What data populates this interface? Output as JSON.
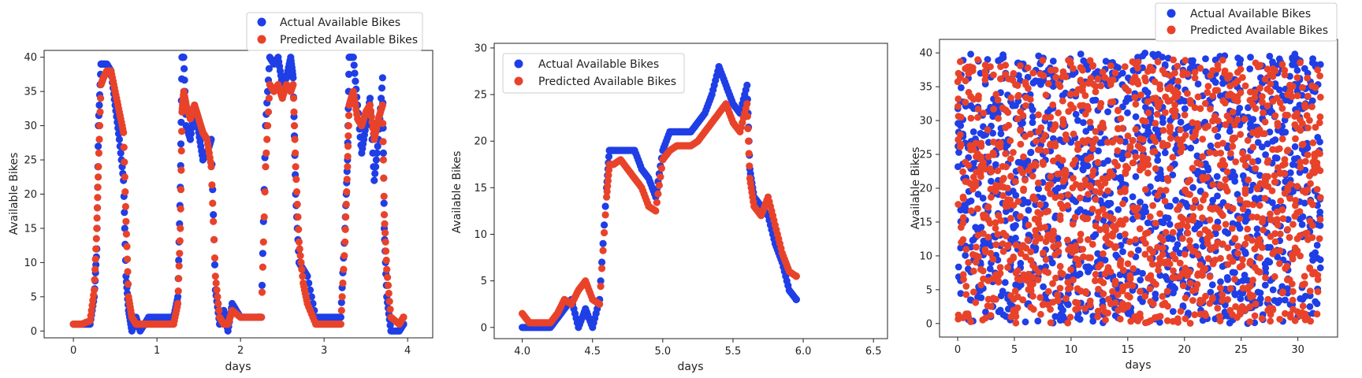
{
  "colors": {
    "actual": "#1f3ee6",
    "predicted": "#e8432a",
    "axis": "#222222",
    "legend_border": "#cccccc"
  },
  "chart_data": [
    {
      "type": "scatter",
      "xlabel": "days",
      "ylabel": "Available Bikes",
      "xlim": [
        -0.35,
        4.3
      ],
      "ylim": [
        -1,
        41
      ],
      "xticks": [
        "0",
        "1",
        "2",
        "3",
        "4"
      ],
      "xtick_values": [
        0,
        1,
        2,
        3,
        4
      ],
      "yticks": [
        "0",
        "5",
        "10",
        "15",
        "20",
        "25",
        "30",
        "35",
        "40"
      ],
      "ytick_values": [
        0,
        5,
        10,
        15,
        20,
        25,
        30,
        35,
        40
      ],
      "grid": false,
      "legend": "top-right, outside",
      "series": [
        {
          "name": "Actual Available Bikes",
          "x": [
            0.0,
            0.1,
            0.2,
            0.25,
            0.28,
            0.3,
            0.33,
            0.36,
            0.4,
            0.45,
            0.5,
            0.55,
            0.6,
            0.63,
            0.66,
            0.7,
            0.75,
            0.8,
            0.9,
            1.0,
            1.1,
            1.2,
            1.25,
            1.28,
            1.3,
            1.32,
            1.35,
            1.4,
            1.45,
            1.5,
            1.55,
            1.6,
            1.65,
            1.7,
            1.75,
            1.8,
            1.85,
            1.9,
            2.0,
            2.1,
            2.2,
            2.25,
            2.3,
            2.35,
            2.4,
            2.45,
            2.5,
            2.55,
            2.6,
            2.63,
            2.66,
            2.7,
            2.75,
            2.8,
            2.9,
            3.0,
            3.1,
            3.2,
            3.25,
            3.28,
            3.3,
            3.35,
            3.4,
            3.45,
            3.5,
            3.55,
            3.6,
            3.65,
            3.7,
            3.72,
            3.75,
            3.8,
            3.9,
            3.95
          ],
          "y": [
            1,
            1,
            1,
            5,
            12,
            30,
            39,
            39,
            39,
            38,
            33,
            28,
            22,
            8,
            3,
            0,
            2,
            0,
            2,
            2,
            2,
            2,
            5,
            21,
            40,
            40,
            30,
            28,
            33,
            29,
            25,
            26,
            28,
            6,
            1,
            3,
            0,
            4,
            2,
            2,
            2,
            2,
            30,
            40,
            39,
            40,
            36,
            37,
            40,
            37,
            20,
            10,
            9,
            8,
            2,
            2,
            2,
            2,
            15,
            25,
            40,
            40,
            33,
            26,
            30,
            34,
            22,
            28,
            37,
            15,
            5,
            0,
            0,
            1
          ]
        },
        {
          "name": "Predicted Available Bikes",
          "x": [
            0.0,
            0.1,
            0.2,
            0.25,
            0.28,
            0.3,
            0.33,
            0.36,
            0.4,
            0.45,
            0.5,
            0.55,
            0.6,
            0.63,
            0.66,
            0.7,
            0.75,
            0.8,
            0.9,
            1.0,
            1.1,
            1.2,
            1.25,
            1.28,
            1.3,
            1.32,
            1.35,
            1.4,
            1.45,
            1.5,
            1.55,
            1.6,
            1.65,
            1.7,
            1.75,
            1.8,
            1.85,
            1.9,
            2.0,
            2.1,
            2.2,
            2.25,
            2.3,
            2.35,
            2.4,
            2.45,
            2.5,
            2.55,
            2.6,
            2.63,
            2.66,
            2.7,
            2.75,
            2.8,
            2.9,
            3.0,
            3.1,
            3.2,
            3.25,
            3.28,
            3.3,
            3.35,
            3.4,
            3.45,
            3.5,
            3.55,
            3.6,
            3.65,
            3.7,
            3.72,
            3.75,
            3.8,
            3.9,
            3.95
          ],
          "y": [
            1,
            1,
            1.5,
            6,
            15,
            24,
            36,
            37,
            38,
            38,
            35,
            32,
            29,
            16,
            5,
            2,
            1,
            1,
            1,
            1,
            1,
            1,
            4,
            15,
            32,
            35,
            33,
            31,
            33,
            31,
            29,
            28,
            24,
            8,
            2,
            1,
            1,
            3,
            2,
            2,
            2,
            2,
            24,
            36,
            35,
            36,
            34,
            36,
            35,
            36,
            24,
            13,
            7,
            4,
            1,
            1,
            1,
            1,
            13,
            24,
            33,
            35,
            31,
            30,
            32,
            33,
            28,
            31,
            33,
            17,
            9,
            2,
            1,
            2
          ]
        }
      ]
    },
    {
      "type": "scatter",
      "xlabel": "days",
      "ylabel": "Available Bikes",
      "xlim": [
        3.8,
        6.6
      ],
      "ylim": [
        -1.2,
        30.5
      ],
      "xticks": [
        "4.0",
        "4.5",
        "5.0",
        "5.5",
        "6.0",
        "6.5"
      ],
      "xtick_values": [
        4.0,
        4.5,
        5.0,
        5.5,
        6.0,
        6.5
      ],
      "yticks": [
        "0",
        "5",
        "10",
        "15",
        "20",
        "25",
        "30"
      ],
      "ytick_values": [
        0,
        5,
        10,
        15,
        20,
        25,
        30
      ],
      "grid": false,
      "legend": "upper left",
      "series": [
        {
          "name": "Actual Available Bikes",
          "x": [
            4.0,
            4.05,
            4.1,
            4.15,
            4.2,
            4.25,
            4.3,
            4.35,
            4.4,
            4.45,
            4.5,
            4.55,
            4.6,
            4.62,
            4.65,
            4.7,
            4.75,
            4.8,
            4.85,
            4.9,
            4.95,
            5.0,
            5.05,
            5.1,
            5.15,
            5.2,
            5.25,
            5.3,
            5.35,
            5.4,
            5.45,
            5.5,
            5.55,
            5.6,
            5.62,
            5.65,
            5.7,
            5.75,
            5.8,
            5.85,
            5.9,
            5.95
          ],
          "y": [
            0,
            0,
            0,
            0,
            0,
            1,
            2,
            3,
            0,
            2,
            0,
            3,
            15,
            19,
            19,
            19,
            19,
            19,
            17,
            16,
            14,
            19,
            21,
            21,
            21,
            21,
            22,
            23,
            25,
            28,
            26,
            24,
            23,
            26,
            17,
            14,
            13,
            12,
            9,
            7,
            4,
            3
          ]
        },
        {
          "name": "Predicted Available Bikes",
          "x": [
            4.0,
            4.05,
            4.1,
            4.15,
            4.2,
            4.25,
            4.3,
            4.35,
            4.4,
            4.45,
            4.5,
            4.55,
            4.6,
            4.62,
            4.65,
            4.7,
            4.75,
            4.8,
            4.85,
            4.9,
            4.95,
            5.0,
            5.05,
            5.1,
            5.15,
            5.2,
            5.25,
            5.3,
            5.35,
            5.4,
            5.45,
            5.5,
            5.55,
            5.6,
            5.62,
            5.65,
            5.7,
            5.75,
            5.8,
            5.85,
            5.9,
            5.95
          ],
          "y": [
            1.5,
            0.5,
            0.5,
            0.5,
            0.5,
            1.5,
            3,
            2.5,
            4,
            5,
            3,
            2.5,
            14,
            17.5,
            17.5,
            18,
            17,
            16,
            15,
            13,
            12.5,
            18,
            19,
            19.5,
            19.5,
            19.5,
            20,
            21,
            22,
            23,
            24,
            22,
            21,
            24,
            16,
            13,
            12,
            14,
            11,
            8,
            6,
            5.5
          ]
        }
      ]
    },
    {
      "type": "scatter",
      "xlabel": "days",
      "ylabel": "Available Bikes",
      "xlim": [
        -1.6,
        33.5
      ],
      "ylim": [
        -2,
        42
      ],
      "xticks": [
        "0",
        "5",
        "10",
        "15",
        "20",
        "25",
        "30"
      ],
      "xtick_values": [
        0,
        5,
        10,
        15,
        20,
        25,
        30
      ],
      "yticks": [
        "0",
        "5",
        "10",
        "15",
        "20",
        "25",
        "30",
        "35",
        "40"
      ],
      "ytick_values": [
        0,
        5,
        10,
        15,
        20,
        25,
        30,
        35,
        40
      ],
      "grid": false,
      "legend": "top-right, outside",
      "series": [
        {
          "name": "Actual Available Bikes",
          "x_range": [
            0,
            32
          ],
          "y_range": [
            0,
            40
          ]
        },
        {
          "name": "Predicted Available Bikes",
          "x_range": [
            0,
            32
          ],
          "y_range": [
            0,
            39
          ]
        }
      ]
    }
  ]
}
